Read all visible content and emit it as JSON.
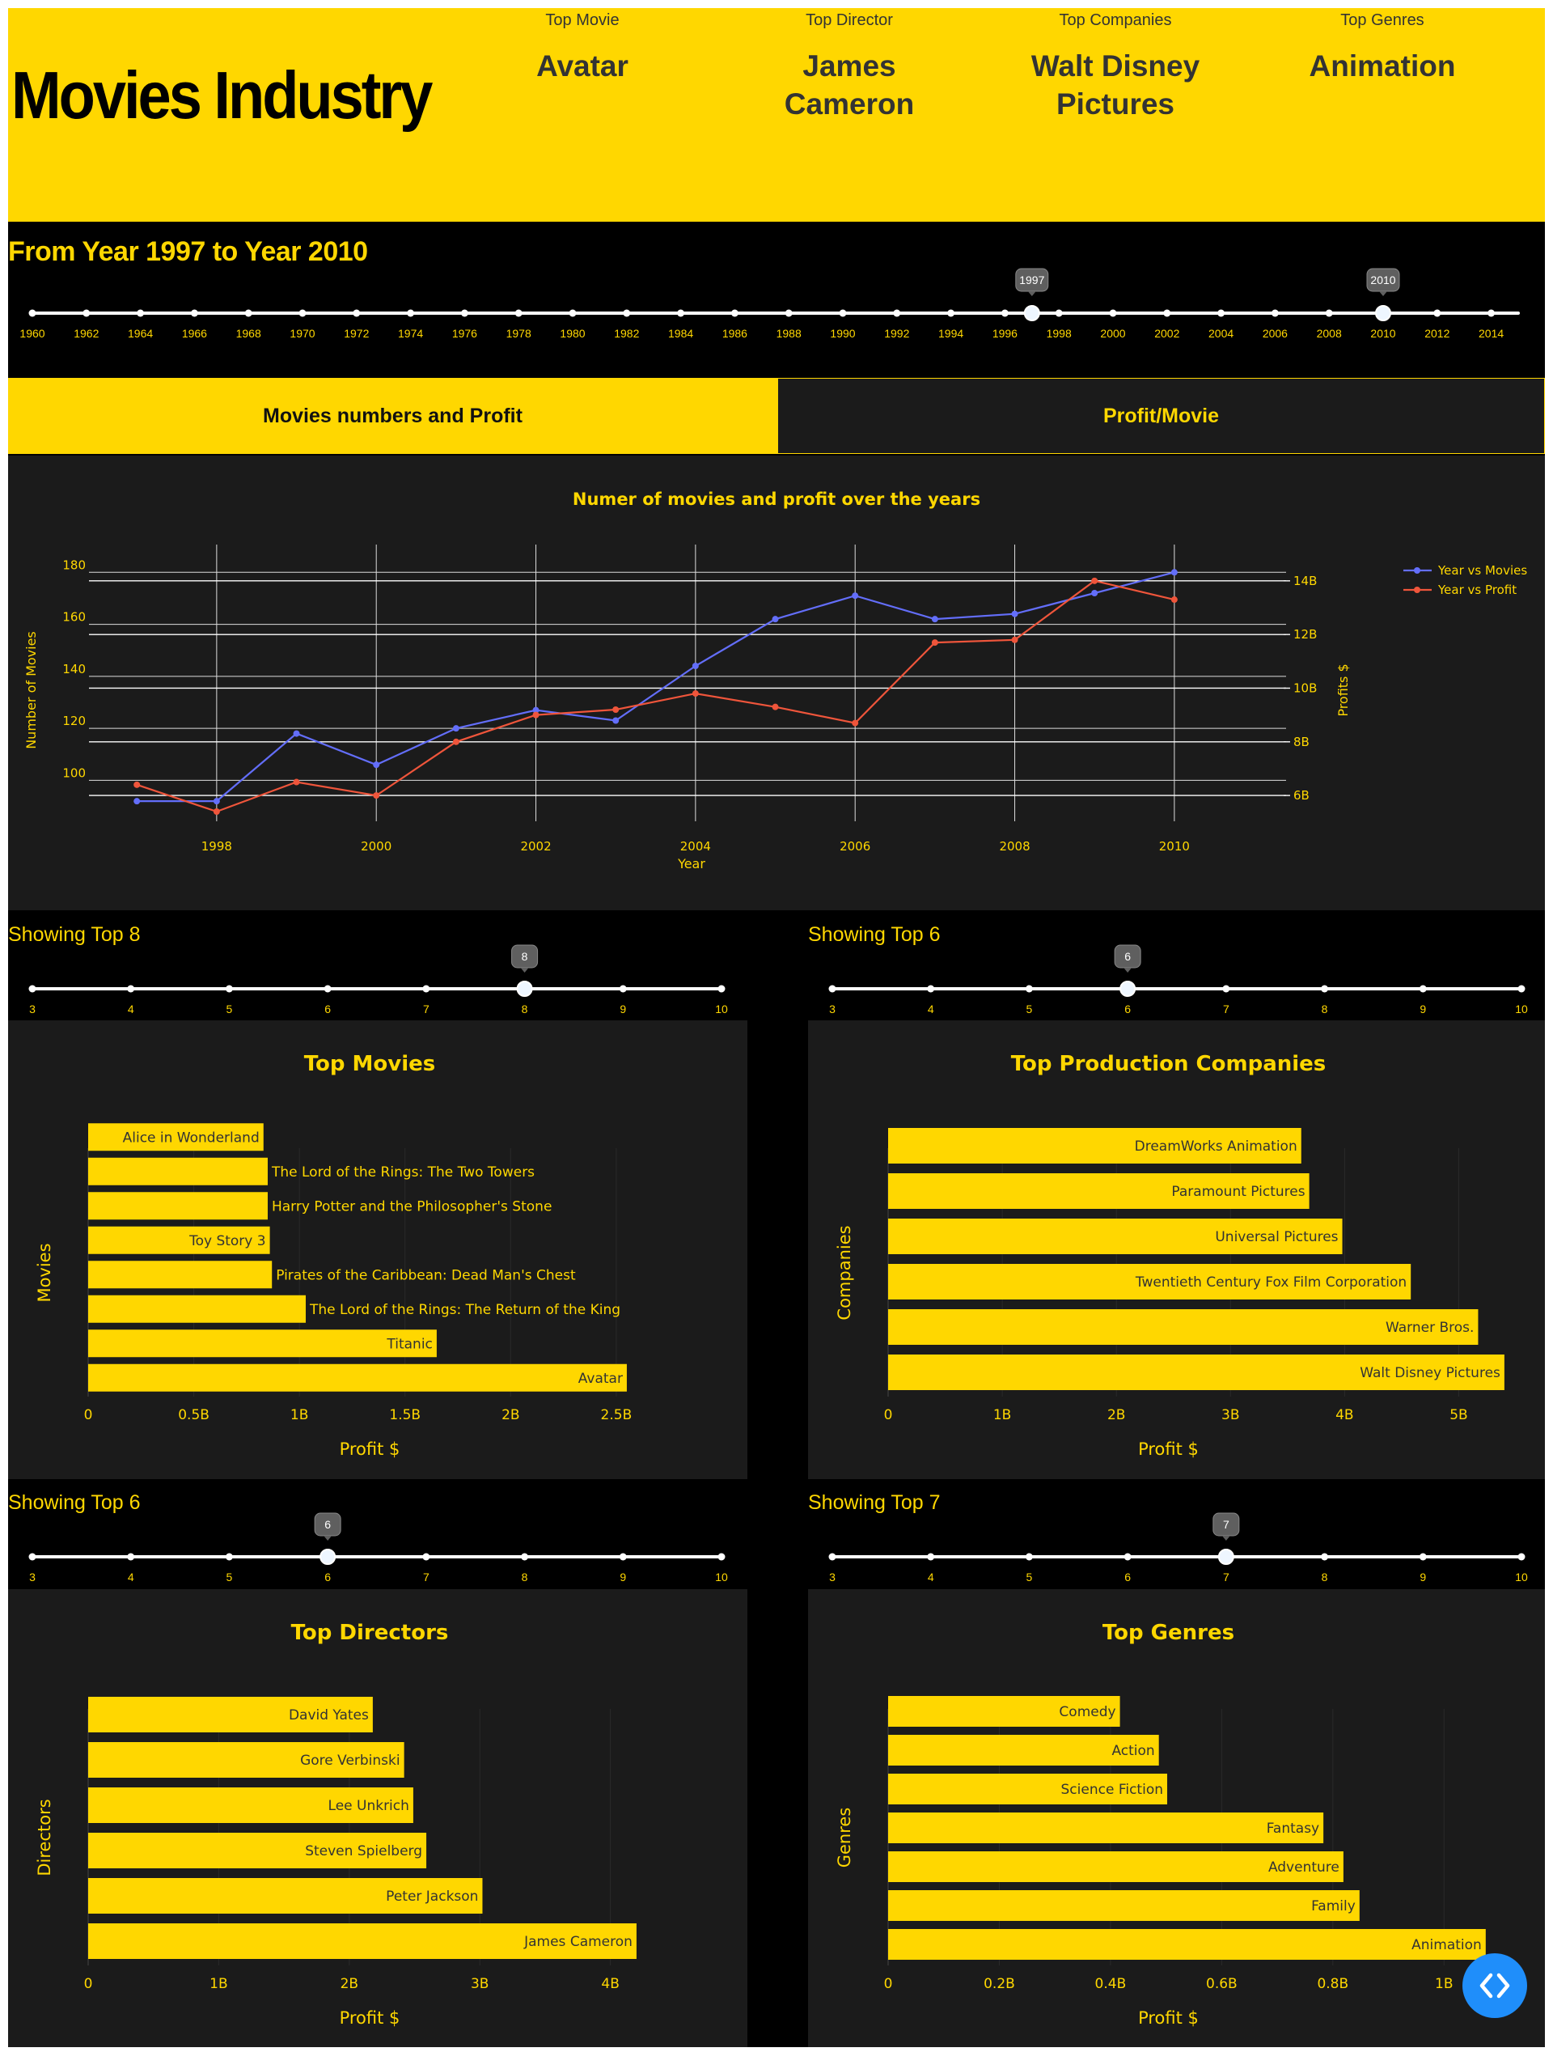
{
  "header": {
    "title": "Movies Industry",
    "kpis": [
      {
        "label": "Top Movie",
        "value_lines": [
          "Avatar"
        ]
      },
      {
        "label": "Top Director",
        "value_lines": [
          "James",
          "Cameron"
        ]
      },
      {
        "label": "Top Companies",
        "value_lines": [
          "Walt Disney",
          "Pictures"
        ]
      },
      {
        "label": "Top Genres",
        "value_lines": [
          "Animation"
        ]
      }
    ]
  },
  "year_range": {
    "title": "From Year 1997 to Year 2010",
    "min": 1960,
    "max": 2015,
    "marks": [
      1960,
      1962,
      1964,
      1966,
      1968,
      1970,
      1972,
      1974,
      1976,
      1978,
      1980,
      1982,
      1984,
      1986,
      1988,
      1990,
      1992,
      1994,
      1996,
      1998,
      2000,
      2002,
      2004,
      2006,
      2008,
      2010,
      2012,
      2014
    ],
    "value": [
      1997,
      2010
    ],
    "handle_labels": [
      "1997",
      "2010"
    ]
  },
  "tabs": [
    {
      "label": "Movies numbers and Profit",
      "active": true
    },
    {
      "label": "Profit/Movie",
      "active": false
    }
  ],
  "colors": {
    "accent": "#FFD700",
    "dark_panel": "#1b1b1b",
    "background": "#000000",
    "movies_line": "#636EFA",
    "profit_line": "#EF553B",
    "code_button": "#1f8efa"
  },
  "chart_data": [
    {
      "type": "line",
      "title": "Numer of movies and profit over the years",
      "xlabel": "Year",
      "ylabel": "Number of Movies",
      "y2label": "Profits $",
      "x": [
        1997,
        1998,
        1999,
        2000,
        2001,
        2002,
        2003,
        2004,
        2005,
        2006,
        2007,
        2008,
        2009,
        2010
      ],
      "xticks": [
        "1998",
        "2000",
        "2002",
        "2004",
        "2006",
        "2008",
        "2010"
      ],
      "xlim": [
        1996.4,
        2011.4
      ],
      "yticks": [
        "100",
        "120",
        "140",
        "160",
        "180"
      ],
      "ylim": [
        88,
        186
      ],
      "y2ticks": [
        "6B",
        "8B",
        "10B",
        "12B",
        "14B"
      ],
      "y2lim": [
        5.4,
        14.9
      ],
      "series": [
        {
          "name": "Year vs Movies",
          "axis": "y",
          "color": "#636EFA",
          "values": [
            92,
            92,
            118,
            106,
            120,
            127,
            123,
            144,
            162,
            171,
            162,
            164,
            172,
            180
          ]
        },
        {
          "name": "Year vs Profit",
          "axis": "y2",
          "color": "#EF553B",
          "values": [
            6.4,
            5.4,
            6.5,
            6.0,
            8.0,
            9.0,
            9.2,
            9.8,
            9.3,
            8.7,
            11.7,
            11.8,
            14.0,
            13.3
          ]
        }
      ],
      "legend": "top-right"
    },
    {
      "type": "bar",
      "orientation": "h",
      "title": "Top Movies",
      "xlabel": "Profit $",
      "ylabel": "Movies",
      "categories": [
        "Avatar",
        "Titanic",
        "The Lord of the Rings: The Return of the King",
        "Pirates of the Caribbean: Dead Man's Chest",
        "Toy Story 3",
        "Harry Potter and the Philosopher's Stone",
        "The Lord of the Rings: The Two Towers",
        "Alice in Wonderland"
      ],
      "values": [
        2.55,
        1.65,
        1.03,
        0.87,
        0.86,
        0.85,
        0.85,
        0.83
      ],
      "xticks": [
        "0",
        "0.5B",
        "1B",
        "1.5B",
        "2B",
        "2.5B"
      ],
      "xlim": [
        0,
        2.6
      ],
      "tick_step": 0.5,
      "labels_outside": [
        false,
        false,
        true,
        true,
        false,
        true,
        true,
        false
      ]
    },
    {
      "type": "bar",
      "orientation": "h",
      "title": "Top Production Companies",
      "xlabel": "Profit $",
      "ylabel": "Companies",
      "categories": [
        "Walt Disney Pictures",
        "Warner Bros.",
        "Twentieth Century Fox Film Corporation",
        "Universal Pictures",
        "Paramount Pictures",
        "DreamWorks Animation"
      ],
      "values": [
        5.4,
        5.17,
        4.58,
        3.98,
        3.69,
        3.62
      ],
      "xticks": [
        "0",
        "1B",
        "2B",
        "3B",
        "4B",
        "5B"
      ],
      "xlim": [
        0,
        5.5
      ],
      "tick_step": 1,
      "labels_outside": [
        false,
        false,
        false,
        false,
        false,
        false
      ]
    },
    {
      "type": "bar",
      "orientation": "h",
      "title": "Top Directors",
      "xlabel": "Profit $",
      "ylabel": "Directors",
      "categories": [
        "James Cameron",
        "Peter Jackson",
        "Steven Spielberg",
        "Lee Unkrich",
        "Gore Verbinski",
        "David Yates"
      ],
      "values": [
        4.2,
        3.02,
        2.59,
        2.49,
        2.42,
        2.18
      ],
      "xticks": [
        "0",
        "1B",
        "2B",
        "3B",
        "4B"
      ],
      "xlim": [
        0,
        4.25
      ],
      "tick_step": 1,
      "labels_outside": [
        false,
        false,
        false,
        false,
        false,
        false
      ]
    },
    {
      "type": "bar",
      "orientation": "h",
      "title": "Top Genres",
      "xlabel": "Profit $",
      "ylabel": "Genres",
      "categories": [
        "Animation",
        "Family",
        "Adventure",
        "Fantasy",
        "Science Fiction",
        "Action",
        "Comedy"
      ],
      "values": [
        1.075,
        0.848,
        0.819,
        0.783,
        0.502,
        0.487,
        0.417
      ],
      "xticks": [
        "0",
        "0.2B",
        "0.4B",
        "0.6B",
        "0.8B",
        "1B"
      ],
      "xlim": [
        0,
        1.1
      ],
      "tick_step": 0.2,
      "labels_outside": [
        false,
        false,
        false,
        false,
        false,
        false,
        false
      ]
    }
  ],
  "top_sliders": [
    {
      "title": "Showing Top 8",
      "value": 8,
      "handle_label": "8",
      "marks": [
        "3",
        "4",
        "5",
        "6",
        "7",
        "8",
        "9",
        "10"
      ]
    },
    {
      "title": "Showing Top 6",
      "value": 6,
      "handle_label": "6",
      "marks": [
        "3",
        "4",
        "5",
        "6",
        "7",
        "8",
        "9",
        "10"
      ]
    },
    {
      "title": "Showing Top 6",
      "value": 6,
      "handle_label": "6",
      "marks": [
        "3",
        "4",
        "5",
        "6",
        "7",
        "8",
        "9",
        "10"
      ]
    },
    {
      "title": "Showing Top 7",
      "value": 7,
      "handle_label": "7",
      "marks": [
        "3",
        "4",
        "5",
        "6",
        "7",
        "8",
        "9",
        "10"
      ]
    }
  ],
  "code_button_icon": "code-icon"
}
